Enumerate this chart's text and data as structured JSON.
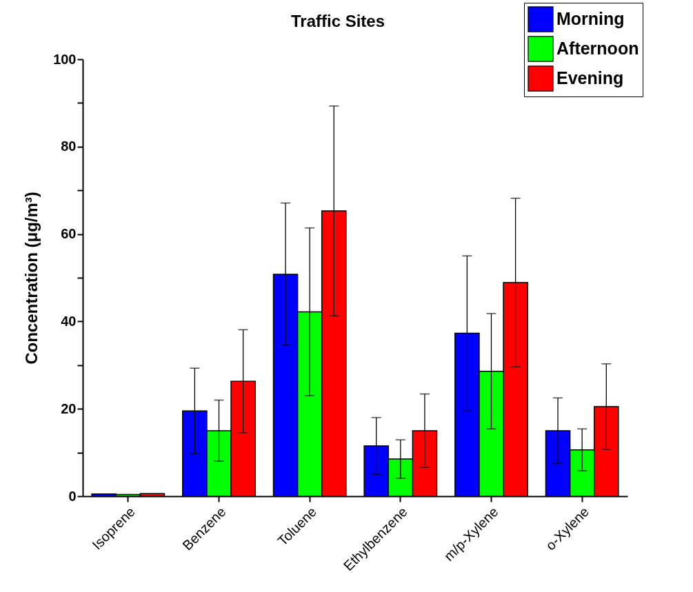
{
  "chart_data": {
    "type": "bar",
    "title": "Traffic Sites",
    "ylabel": "Concentration (μg/m³)",
    "categories": [
      "Isoprene",
      "Benzene",
      "Toluene",
      "Ethylbenzene",
      "m/p-Xylene",
      "o-Xylene"
    ],
    "series": [
      {
        "name": "Morning",
        "color": "#0000ff",
        "values": [
          0.5,
          19.5,
          50.8,
          11.5,
          37.3,
          15.0
        ],
        "errors": [
          null,
          9.8,
          16.3,
          6.5,
          17.7,
          7.5
        ]
      },
      {
        "name": "Afternoon",
        "color": "#00ff00",
        "values": [
          0.4,
          15.0,
          42.2,
          8.5,
          28.6,
          10.6
        ],
        "errors": [
          null,
          7.0,
          19.2,
          4.4,
          13.2,
          4.8
        ]
      },
      {
        "name": "Evening",
        "color": "#ff0000",
        "values": [
          0.6,
          26.3,
          65.3,
          15.0,
          48.9,
          20.5
        ],
        "errors": [
          null,
          11.8,
          24.0,
          8.4,
          19.3,
          9.8
        ]
      }
    ],
    "ylim": [
      0,
      100
    ],
    "yticks": [
      0,
      {
        "value": 10,
        "label": null
      },
      20,
      {
        "value": 30,
        "label": null
      },
      40,
      {
        "value": 50,
        "label": null
      },
      60,
      {
        "value": 70,
        "label": null
      },
      80,
      {
        "value": 90,
        "label": null
      },
      100
    ],
    "legend": "top right",
    "grid": false
  }
}
